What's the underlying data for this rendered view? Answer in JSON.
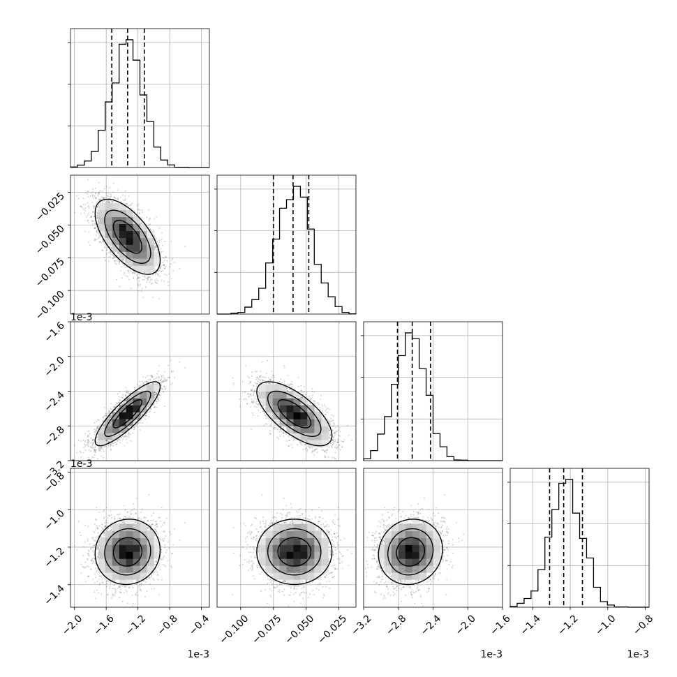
{
  "chart_data": {
    "type": "corner",
    "parameters": [
      {
        "range": [
          -2.05,
          -0.3
        ],
        "exponent_label": "1e-3",
        "ticks": [
          -2.0,
          -1.6,
          -1.2,
          -0.8,
          -0.4
        ],
        "tick_labels": [
          "−2.0",
          "−1.6",
          "−1.2",
          "−0.8",
          "−0.4"
        ],
        "quantiles": [
          -1.53,
          -1.33,
          -1.12
        ],
        "mode": -1.33,
        "sigma": 0.2
      },
      {
        "range": [
          -0.118,
          -0.012
        ],
        "exponent_label": "",
        "ticks": [
          -0.1,
          -0.075,
          -0.05,
          -0.025
        ],
        "tick_labels": [
          "−0.100",
          "−0.075",
          "−0.050",
          "−0.025"
        ],
        "quantiles": [
          -0.075,
          -0.06,
          -0.048
        ],
        "mode": -0.059,
        "sigma": 0.014
      },
      {
        "range": [
          -3.2,
          -1.6
        ],
        "exponent_label": "1e-3",
        "ticks": [
          -3.2,
          -2.8,
          -2.4,
          -2.0,
          -1.6
        ],
        "tick_labels": [
          "−3.2",
          "−2.8",
          "−2.4",
          "−2.0",
          "−1.6"
        ],
        "quantiles": [
          -2.81,
          -2.64,
          -2.43
        ],
        "mode": -2.66,
        "sigma": 0.18
      },
      {
        "range": [
          -1.52,
          -0.78
        ],
        "exponent_label": "1e-3",
        "ticks": [
          -1.4,
          -1.2,
          -1.0,
          -0.8
        ],
        "tick_labels": [
          "−1.4",
          "−1.2",
          "−1.0",
          "−0.8"
        ],
        "quantiles": [
          -1.31,
          -1.235,
          -1.135
        ],
        "mode": -1.225,
        "sigma": 0.085
      }
    ],
    "correlations": {
      "1-0": -0.62,
      "2-0": 0.85,
      "2-1": -0.68,
      "3-0": 0.05,
      "3-1": 0.0,
      "3-2": 0.08
    },
    "n_bins": 20,
    "quantile_line_style": "dashed",
    "grid": true
  }
}
